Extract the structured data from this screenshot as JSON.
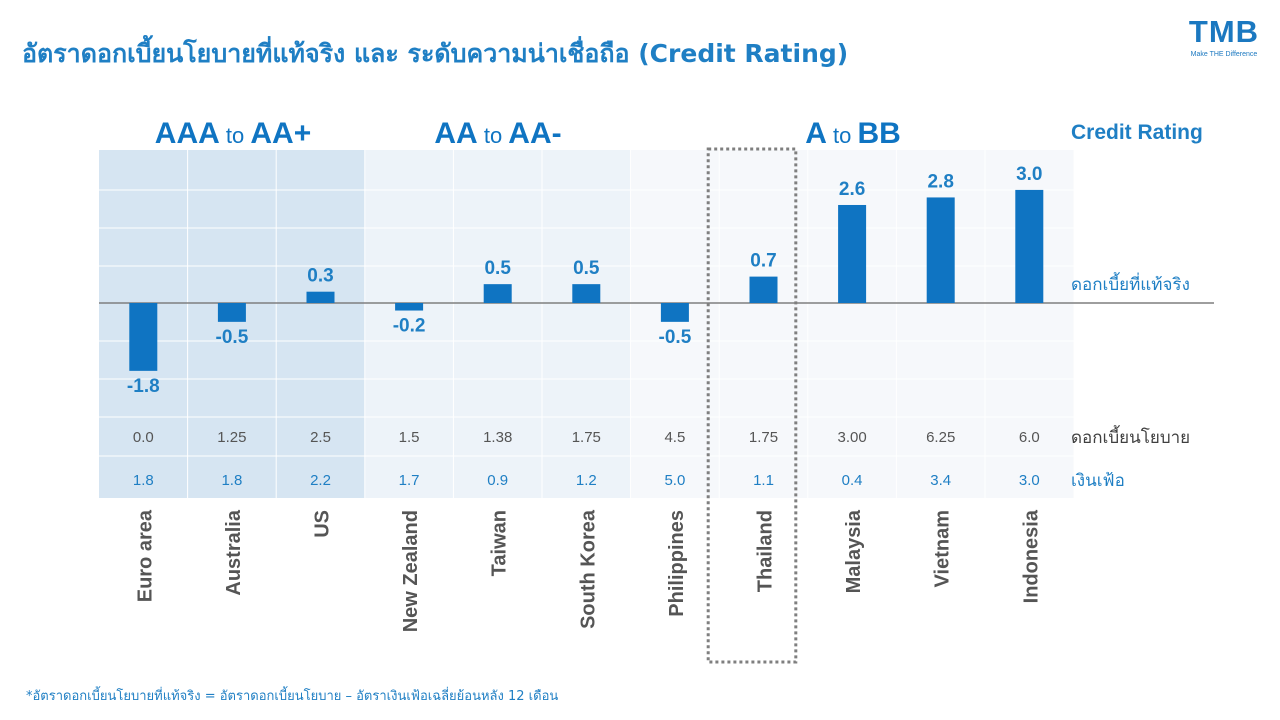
{
  "title": "อัตราดอกเบี้ยนโยบายที่แท้จริง และ ระดับความน่าเชื่อถือ (Credit Rating)",
  "logo": {
    "text": "TMB",
    "tagline": "Make THE Difference"
  },
  "footnote": "*อัตราดอกเบี้ยนโยบายที่แท้จริง = อัตราดอกเบี้ยนโยบาย – อัตราเงินเฟ้อเฉลี่ยย้อนหลัง  12 เดือน",
  "colors": {
    "accent": "#1f7fc4",
    "bar": "#0f74c2",
    "band1": "#d6e5f2",
    "band2": "#edf3f9",
    "band3": "#f6f8fb"
  },
  "chart_data": {
    "type": "bar",
    "categories": [
      "Euro area",
      "Australia",
      "US",
      "New Zealand",
      "Taiwan",
      "South Korea",
      "Philippines",
      "Thailand",
      "Malaysia",
      "Vietnam",
      "Indonesia"
    ],
    "series": [
      {
        "name": "ดอกเบี้ยที่แท้จริง",
        "values": [
          -1.8,
          -0.5,
          0.3,
          -0.2,
          0.5,
          0.5,
          -0.5,
          0.7,
          2.6,
          2.8,
          3.0
        ]
      }
    ],
    "value_labels": [
      "-1.8",
      "-0.5",
      "0.3",
      "-0.2",
      "0.5",
      "0.5",
      "-0.5",
      "0.7",
      "2.6",
      "2.8",
      "3.0"
    ],
    "ylim": [
      -3.0,
      4.1
    ],
    "policy_rate": {
      "label": "ดอกเบี้ยนโยบาย",
      "values": [
        "0.0",
        "1.25",
        "2.5",
        "1.5",
        "1.38",
        "1.75",
        "4.5",
        "1.75",
        "3.00",
        "6.25",
        "6.0"
      ]
    },
    "inflation": {
      "label": "เงินเฟ้อ",
      "values": [
        "1.8",
        "1.8",
        "2.2",
        "1.7",
        "0.9",
        "1.2",
        "5.0",
        "1.1",
        "0.4",
        "3.4",
        "3.0"
      ]
    },
    "credit_rating_label": "Credit Rating",
    "rating_groups": [
      {
        "from": "AAA",
        "to": "AA+",
        "connector": "to",
        "start": 0,
        "end": 2
      },
      {
        "from": "AA",
        "to": "AA-",
        "connector": "to",
        "start": 3,
        "end": 5
      },
      {
        "from": "A",
        "to": "BB",
        "connector": "to",
        "start": 6,
        "end": 10
      }
    ],
    "highlight": "Thailand",
    "grid": true
  }
}
